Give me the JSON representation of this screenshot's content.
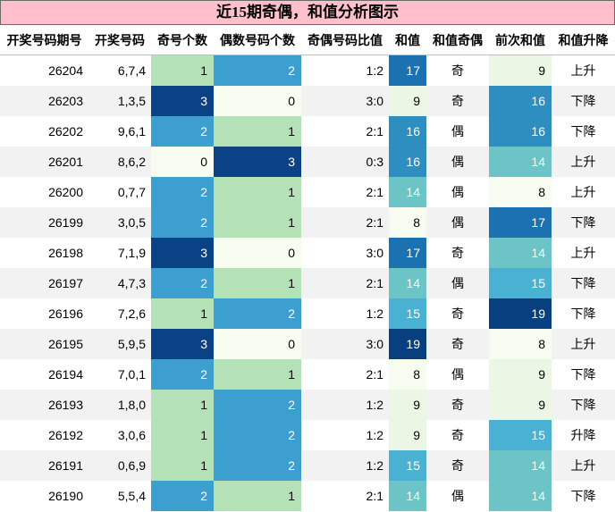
{
  "title": "近15期奇偶，和值分析图示",
  "chart_data": {
    "type": "table",
    "columns": [
      "开奖号码期号",
      "开奖号码",
      "奇号个数",
      "偶数号码个数",
      "奇偶号码比值",
      "和值",
      "和值奇偶",
      "前次和值",
      "和值升降"
    ],
    "rows": [
      {
        "issue": "26204",
        "nums": "6,7,4",
        "odd": 1,
        "even": 2,
        "ratio": "1:2",
        "sum": 17,
        "parity": "奇",
        "prev": 9,
        "trend": "上升"
      },
      {
        "issue": "26203",
        "nums": "1,3,5",
        "odd": 3,
        "even": 0,
        "ratio": "3:0",
        "sum": 9,
        "parity": "奇",
        "prev": 16,
        "trend": "下降"
      },
      {
        "issue": "26202",
        "nums": "9,6,1",
        "odd": 2,
        "even": 1,
        "ratio": "2:1",
        "sum": 16,
        "parity": "偶",
        "prev": 16,
        "trend": "下降"
      },
      {
        "issue": "26201",
        "nums": "8,6,2",
        "odd": 0,
        "even": 3,
        "ratio": "0:3",
        "sum": 16,
        "parity": "偶",
        "prev": 14,
        "trend": "上升"
      },
      {
        "issue": "26200",
        "nums": "0,7,7",
        "odd": 2,
        "even": 1,
        "ratio": "2:1",
        "sum": 14,
        "parity": "偶",
        "prev": 8,
        "trend": "上升"
      },
      {
        "issue": "26199",
        "nums": "3,0,5",
        "odd": 2,
        "even": 1,
        "ratio": "2:1",
        "sum": 8,
        "parity": "偶",
        "prev": 17,
        "trend": "下降"
      },
      {
        "issue": "26198",
        "nums": "7,1,9",
        "odd": 3,
        "even": 0,
        "ratio": "3:0",
        "sum": 17,
        "parity": "奇",
        "prev": 14,
        "trend": "上升"
      },
      {
        "issue": "26197",
        "nums": "4,7,3",
        "odd": 2,
        "even": 1,
        "ratio": "2:1",
        "sum": 14,
        "parity": "偶",
        "prev": 15,
        "trend": "下降"
      },
      {
        "issue": "26196",
        "nums": "7,2,6",
        "odd": 1,
        "even": 2,
        "ratio": "1:2",
        "sum": 15,
        "parity": "奇",
        "prev": 19,
        "trend": "下降"
      },
      {
        "issue": "26195",
        "nums": "5,9,5",
        "odd": 3,
        "even": 0,
        "ratio": "3:0",
        "sum": 19,
        "parity": "奇",
        "prev": 8,
        "trend": "上升"
      },
      {
        "issue": "26194",
        "nums": "7,0,1",
        "odd": 2,
        "even": 1,
        "ratio": "2:1",
        "sum": 8,
        "parity": "偶",
        "prev": 9,
        "trend": "下降"
      },
      {
        "issue": "26193",
        "nums": "1,8,0",
        "odd": 1,
        "even": 2,
        "ratio": "1:2",
        "sum": 9,
        "parity": "奇",
        "prev": 9,
        "trend": "下降"
      },
      {
        "issue": "26192",
        "nums": "3,0,6",
        "odd": 1,
        "even": 2,
        "ratio": "1:2",
        "sum": 9,
        "parity": "奇",
        "prev": 15,
        "trend": "升降"
      },
      {
        "issue": "26191",
        "nums": "0,6,9",
        "odd": 1,
        "even": 2,
        "ratio": "1:2",
        "sum": 15,
        "parity": "奇",
        "prev": 14,
        "trend": "上升"
      },
      {
        "issue": "26190",
        "nums": "5,5,4",
        "odd": 2,
        "even": 1,
        "ratio": "2:1",
        "sum": 14,
        "parity": "偶",
        "prev": 14,
        "trend": "下降"
      }
    ],
    "heat_colors": {
      "count": {
        "0": "#f7fcf0",
        "1": "#b4e1b6",
        "2": "#3d9fcf",
        "3": "#0b4285"
      },
      "sum": {
        "8": "#f7fcf0",
        "9": "#ebf7e4",
        "14": "#6cc4c6",
        "15": "#4bb1d2",
        "16": "#2f8ec0",
        "17": "#1c72b1",
        "19": "#08407f"
      }
    },
    "zebra_color": "#f2f2f2"
  }
}
